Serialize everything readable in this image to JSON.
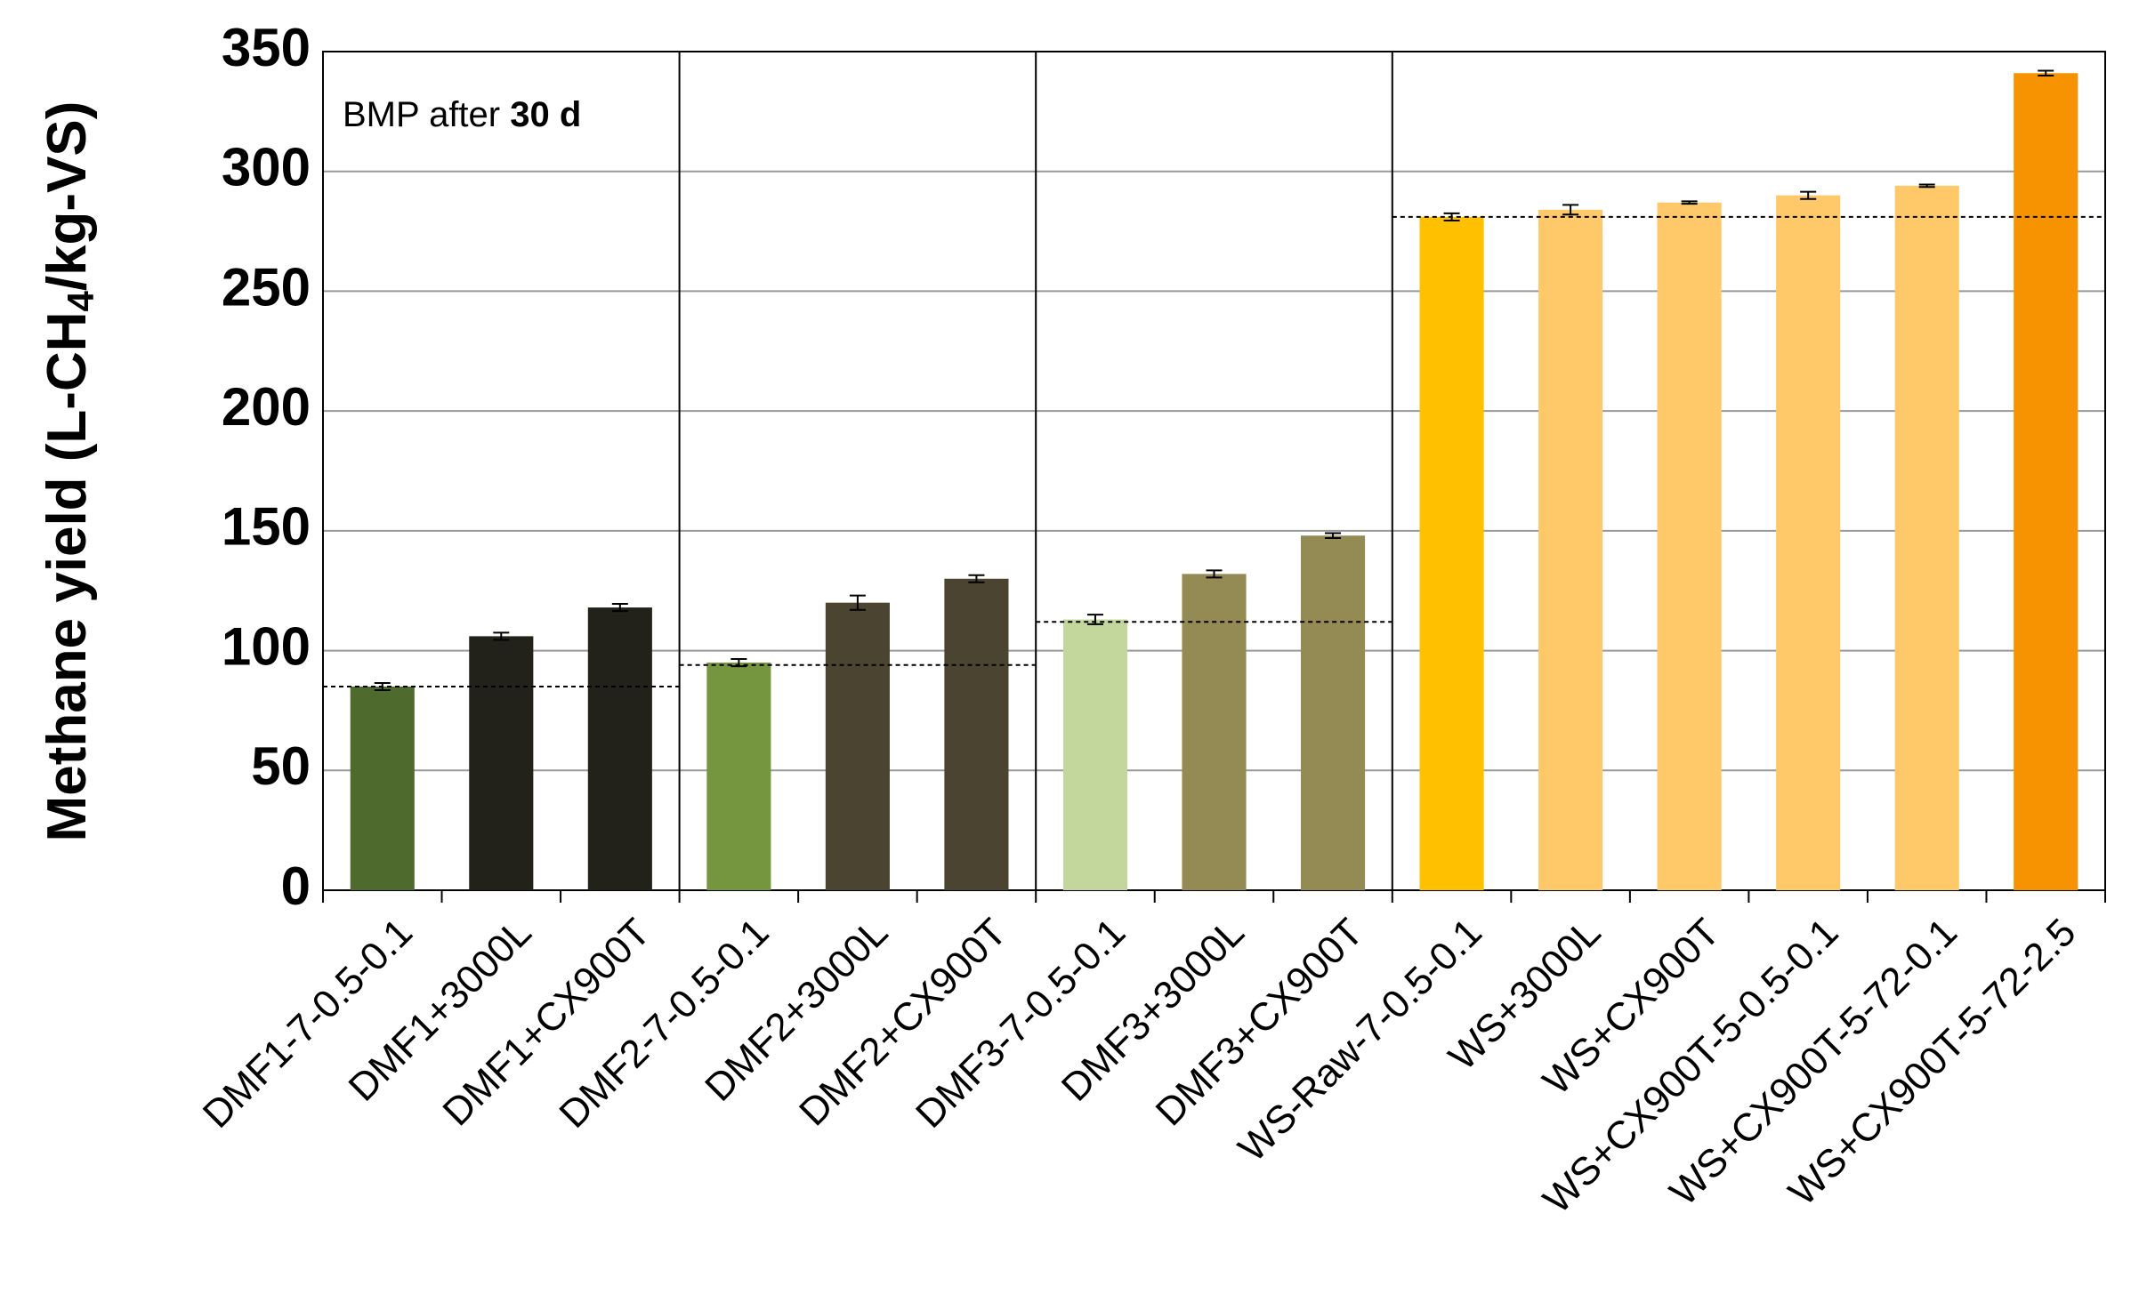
{
  "chart_data": {
    "type": "bar",
    "y_label": [
      "Methane yield (L-CH",
      "4",
      "/kg-VS)"
    ],
    "annotation": [
      "BMP after",
      "30 d"
    ],
    "ylim": [
      0,
      350
    ],
    "yticks": [
      0,
      50,
      100,
      150,
      200,
      250,
      300,
      350
    ],
    "grid": true,
    "groups": [
      {
        "reference": 85,
        "categories": [
          "DMF1-7-0.5-0.1",
          "DMF1+3000L",
          "DMF1+CX900T"
        ],
        "values": [
          85,
          106,
          118
        ],
        "errors": [
          1.5,
          1.5,
          1.5
        ],
        "colors": [
          "#4f6a2d",
          "#23221a",
          "#23221a"
        ]
      },
      {
        "reference": 94,
        "categories": [
          "DMF2-7-0.5-0.1",
          "DMF2+3000L",
          "DMF2+CX900T"
        ],
        "values": [
          95,
          120,
          130
        ],
        "errors": [
          1.5,
          3,
          1.5
        ],
        "colors": [
          "#76953f",
          "#4a4430",
          "#4a4430"
        ]
      },
      {
        "reference": 112,
        "categories": [
          "DMF3-7-0.5-0.1",
          "DMF3+3000L",
          "DMF3+CX900T"
        ],
        "values": [
          113,
          132,
          148
        ],
        "errors": [
          2,
          1.5,
          1
        ],
        "colors": [
          "#c3d69b",
          "#948a54",
          "#948a54"
        ]
      },
      {
        "reference": 281,
        "categories": [
          "WS-Raw-7-0.5-0.1",
          "WS+3000L",
          "WS+CX900T",
          "WS+CX900T-5-0.5-0.1",
          "WS+CX900T-5-72-0.1",
          "WS+CX900T-5-72-2.5"
        ],
        "values": [
          281,
          284,
          287,
          290,
          294,
          341
        ],
        "errors": [
          1.5,
          2,
          0.5,
          1.5,
          0.5,
          1
        ],
        "colors": [
          "#ffc000",
          "#ffc96a",
          "#ffc96a",
          "#ffc96a",
          "#ffc96a",
          "#f79200"
        ]
      }
    ]
  }
}
